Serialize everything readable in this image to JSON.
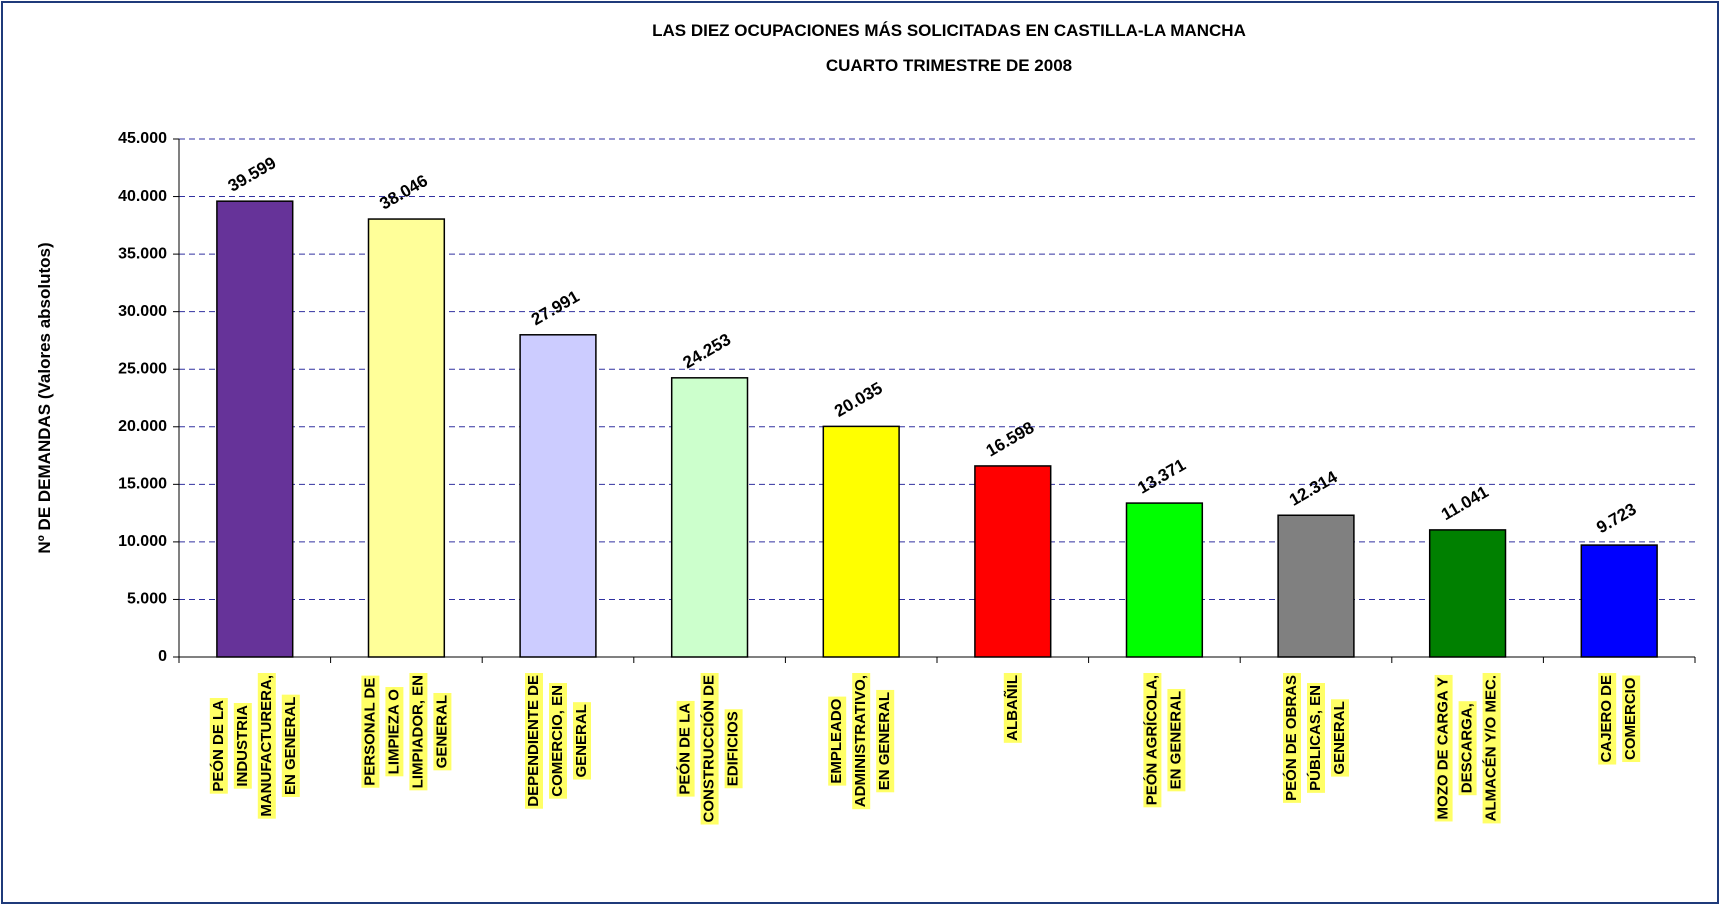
{
  "chart_data": {
    "type": "bar",
    "title": [
      "LAS DIEZ OCUPACIONES MÁS SOLICITADAS EN CASTILLA-LA MANCHA",
      "CUARTO TRIMESTRE DE 2008"
    ],
    "y_label": "Nº DE DEMANDAS (Valores absolutos)",
    "categories": [
      [
        "PEÓN DE LA",
        "INDUSTRIA",
        "MANUFACTURERA,",
        "EN GENERAL"
      ],
      [
        "PERSONAL DE",
        "LIMPIEZA O",
        "LIMPIADOR, EN",
        "GENERAL"
      ],
      [
        "DEPENDIENTE DE",
        "COMERCIO, EN",
        "GENERAL"
      ],
      [
        "PEÓN DE LA",
        "CONSTRUCCIÓN DE",
        "EDIFICIOS"
      ],
      [
        "EMPLEADO",
        "ADMINISTRATIVO,",
        "EN GENERAL"
      ],
      [
        "ALBAÑIL"
      ],
      [
        "PEÓN AGRÍCOLA,",
        "EN GENERAL"
      ],
      [
        "PEÓN DE OBRAS",
        "PÚBLICAS, EN",
        "GENERAL"
      ],
      [
        "MOZO DE CARGA Y",
        "DESCARGA,",
        "ALMACÉN Y/O MEC."
      ],
      [
        "CAJERO DE",
        "COMERCIO"
      ]
    ],
    "values": [
      39599,
      38046,
      27991,
      24253,
      20035,
      16598,
      13371,
      12314,
      11041,
      9723
    ],
    "value_labels": [
      "39.599",
      "38.046",
      "27.991",
      "24.253",
      "20.035",
      "16.598",
      "13.371",
      "12.314",
      "11.041",
      "9.723"
    ],
    "colors": [
      "#663399",
      "#ffff99",
      "#ccccff",
      "#ccffcc",
      "#ffff00",
      "#ff0000",
      "#00ff00",
      "#808080",
      "#008000",
      "#0000ff"
    ],
    "ylim": [
      0,
      45000
    ],
    "yticks": [
      0,
      {
        "value": 5000,
        "label": "5.000"
      },
      {
        "value": 10000,
        "label": "10.000"
      },
      {
        "value": 15000,
        "label": "15.000"
      },
      {
        "value": 20000,
        "label": "20.000"
      },
      {
        "value": 25000,
        "label": "25.000"
      },
      {
        "value": 30000,
        "label": "30.000"
      },
      {
        "value": 35000,
        "label": "35.000"
      },
      {
        "value": 40000,
        "label": "40.000"
      },
      {
        "value": 45000,
        "label": "45.000"
      }
    ],
    "grid": true
  }
}
